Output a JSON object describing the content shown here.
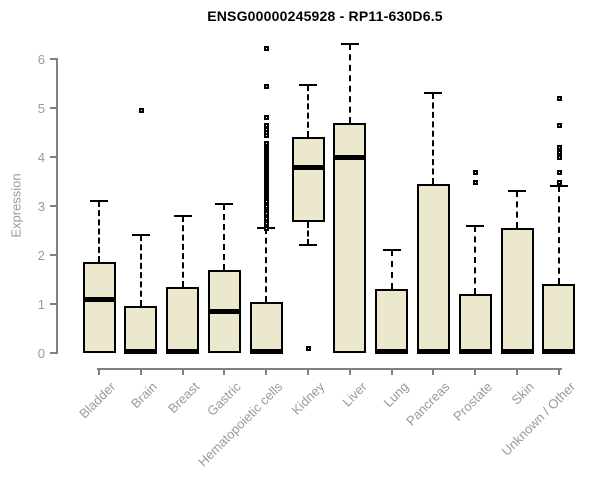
{
  "title": "ENSG00000245928 - RP11-630D6.5",
  "colors": {
    "box_fill": "#ece8cd",
    "box_border": "#000000",
    "axis": "#808080",
    "tick_label": "#9a9a9a",
    "title_color": "#000000"
  },
  "chart_data": {
    "type": "boxplot",
    "title": "ENSG00000245928 - RP11-630D6.5",
    "xlabel": "",
    "ylabel": "Expression",
    "ylim": [
      0,
      6
    ],
    "yticks": [
      0,
      1,
      2,
      3,
      4,
      5,
      6
    ],
    "grid": "off",
    "categories": [
      "Bladder",
      "Brain",
      "Breast",
      "Gastric",
      "Hematopoietic cells",
      "Kidney",
      "Liver",
      "Lung",
      "Pancreas",
      "Prostate",
      "Skin",
      "Unknown / Other"
    ],
    "series": [
      {
        "category": "Bladder",
        "whisker_low": 0,
        "q1": 0,
        "median": 1.1,
        "q3": 1.85,
        "whisker_high": 3.1,
        "outliers": []
      },
      {
        "category": "Brain",
        "whisker_low": 0,
        "q1": 0,
        "median": 0.05,
        "q3": 0.95,
        "whisker_high": 2.4,
        "outliers": [
          4.95
        ]
      },
      {
        "category": "Breast",
        "whisker_low": 0,
        "q1": 0,
        "median": 0.05,
        "q3": 1.35,
        "whisker_high": 2.8,
        "outliers": []
      },
      {
        "category": "Gastric",
        "whisker_low": 0,
        "q1": 0,
        "median": 0.85,
        "q3": 1.7,
        "whisker_high": 3.05,
        "outliers": []
      },
      {
        "category": "Hematopoietic cells",
        "whisker_low": 0,
        "q1": 0,
        "median": 0.05,
        "q3": 1.05,
        "whisker_high": 2.55,
        "outliers": [
          2.56,
          2.61,
          2.66,
          2.71,
          2.76,
          2.81,
          2.86,
          2.91,
          2.96,
          3.01,
          3.06,
          3.11,
          3.16,
          3.2,
          3.24,
          3.28,
          3.32,
          3.36,
          3.4,
          3.44,
          3.48,
          3.52,
          3.56,
          3.6,
          3.64,
          3.68,
          3.72,
          3.76,
          3.8,
          3.84,
          3.88,
          3.92,
          3.96,
          4.0,
          4.04,
          4.08,
          4.12,
          4.16,
          4.2,
          4.24,
          4.28,
          4.45,
          4.52,
          4.58,
          4.65,
          4.82,
          5.45,
          6.22
        ]
      },
      {
        "category": "Kidney",
        "whisker_low": 2.2,
        "q1": 2.67,
        "median": 3.8,
        "q3": 4.4,
        "whisker_high": 5.47,
        "outliers": [
          0.1
        ]
      },
      {
        "category": "Liver",
        "whisker_low": 0,
        "q1": 0,
        "median": 4.0,
        "q3": 4.7,
        "whisker_high": 6.3,
        "outliers": []
      },
      {
        "category": "Lung",
        "whisker_low": 0,
        "q1": 0,
        "median": 0.05,
        "q3": 1.3,
        "whisker_high": 2.1,
        "outliers": []
      },
      {
        "category": "Pancreas",
        "whisker_low": 0,
        "q1": 0,
        "median": 0.05,
        "q3": 3.45,
        "whisker_high": 5.3,
        "outliers": []
      },
      {
        "category": "Prostate",
        "whisker_low": 0,
        "q1": 0,
        "median": 0.05,
        "q3": 1.2,
        "whisker_high": 2.6,
        "outliers": [
          3.5,
          3.7
        ]
      },
      {
        "category": "Skin",
        "whisker_low": 0,
        "q1": 0,
        "median": 0.05,
        "q3": 2.55,
        "whisker_high": 3.3,
        "outliers": []
      },
      {
        "category": "Unknown / Other",
        "whisker_low": 0,
        "q1": 0,
        "median": 0.05,
        "q3": 1.4,
        "whisker_high": 3.4,
        "outliers": [
          3.5,
          3.7,
          4.0,
          4.1,
          4.2,
          4.65,
          5.2
        ]
      }
    ]
  }
}
